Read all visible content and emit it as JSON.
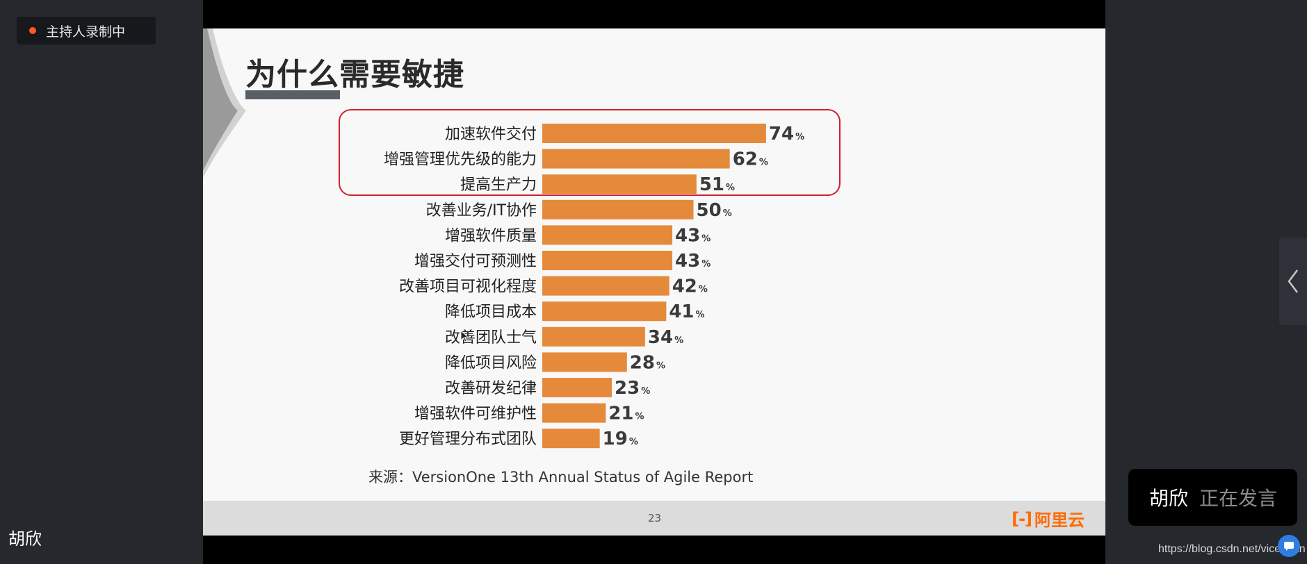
{
  "recording_badge": {
    "label": "主持人录制中"
  },
  "left_panel": {
    "participant_name": "胡欣"
  },
  "slide": {
    "title": "为什么需要敏捷",
    "source": "来源：VersionOne 13th Annual Status of Agile Report",
    "page_number": "23",
    "brand_mark": "[-]",
    "brand_text": "阿里云"
  },
  "chart_data": {
    "type": "bar",
    "orientation": "horizontal",
    "categories": [
      "加速软件交付",
      "增强管理优先级的能力",
      "提高生产力",
      "改善业务/IT协作",
      "增强软件质量",
      "增强交付可预测性",
      "改善项目可视化程度",
      "降低项目成本",
      "改善团队士气",
      "降低项目风险",
      "改善研发纪律",
      "增强软件可维护性",
      "更好管理分布式团队"
    ],
    "values": [
      74,
      62,
      51,
      50,
      43,
      43,
      42,
      41,
      34,
      28,
      23,
      21,
      19
    ],
    "unit": "%",
    "highlighted_count": 3,
    "bar_color": "#e58a3b",
    "highlight_color": "#d0202d"
  },
  "right_panel": {
    "speaker_name": "胡欣",
    "speaker_status": "正在发言",
    "watermark": "https://blog.csdn.net/vicennan"
  }
}
